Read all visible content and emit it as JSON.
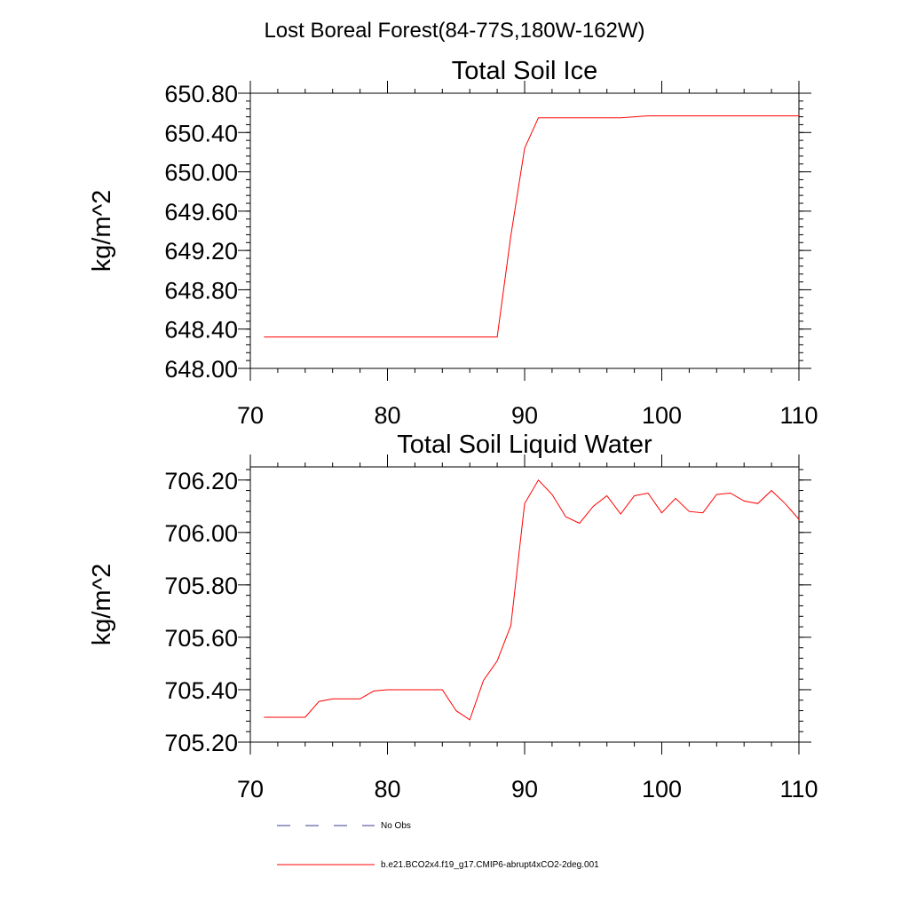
{
  "figure": {
    "title": "Lost Boreal Forest(84-77S,180W-162W)"
  },
  "legend": {
    "items": [
      {
        "label": "No Obs",
        "color": "#3b3b8f",
        "dash": "dashed"
      },
      {
        "label": "b.e21.BCO2x4.f19_g17.CMIP6-abrupt4xCO2-2deg.001",
        "color": "#ff0000",
        "dash": "solid"
      }
    ]
  },
  "chart_data": [
    {
      "type": "line",
      "title": "Total Soil Ice",
      "xlabel": "",
      "ylabel": "kg/m^2",
      "xlim": [
        70,
        110
      ],
      "ylim": [
        648.0,
        650.8
      ],
      "xticks": [
        70,
        80,
        90,
        100,
        110
      ],
      "xtick_labels": [
        "70",
        "80",
        "90",
        "100",
        "110"
      ],
      "yticks": [
        648.0,
        648.4,
        648.8,
        649.2,
        649.6,
        650.0,
        650.4,
        650.8
      ],
      "ytick_labels": [
        "648.00",
        "648.40",
        "648.80",
        "649.20",
        "649.60",
        "650.00",
        "650.40",
        "650.80"
      ],
      "series": [
        {
          "color": "#ff0000",
          "x": [
            71,
            72,
            73,
            74,
            75,
            76,
            77,
            78,
            79,
            80,
            81,
            82,
            83,
            84,
            85,
            86,
            87,
            88,
            89,
            90,
            91,
            92,
            93,
            94,
            95,
            96,
            97,
            98,
            99,
            100,
            101,
            102,
            103,
            104,
            105,
            106,
            107,
            108,
            109,
            110
          ],
          "y": [
            648.32,
            648.32,
            648.32,
            648.32,
            648.32,
            648.32,
            648.32,
            648.32,
            648.32,
            648.32,
            648.32,
            648.32,
            648.32,
            648.32,
            648.32,
            648.32,
            648.32,
            648.32,
            649.35,
            650.24,
            650.55,
            650.55,
            650.55,
            650.55,
            650.55,
            650.55,
            650.55,
            650.56,
            650.57,
            650.57,
            650.57,
            650.57,
            650.57,
            650.57,
            650.57,
            650.57,
            650.57,
            650.57,
            650.57,
            650.57
          ]
        }
      ]
    },
    {
      "type": "line",
      "title": "Total Soil Liquid Water",
      "xlabel": "",
      "ylabel": "kg/m^2",
      "xlim": [
        70,
        110
      ],
      "ylim": [
        705.2,
        706.25
      ],
      "xticks": [
        70,
        80,
        90,
        100,
        110
      ],
      "xtick_labels": [
        "70",
        "80",
        "90",
        "100",
        "110"
      ],
      "yticks": [
        705.2,
        705.4,
        705.6,
        705.8,
        706.0,
        706.2
      ],
      "ytick_labels": [
        "705.20",
        "705.40",
        "705.60",
        "705.80",
        "706.00",
        "706.20"
      ],
      "series": [
        {
          "color": "#ff0000",
          "x": [
            71,
            72,
            73,
            74,
            75,
            76,
            77,
            78,
            79,
            80,
            81,
            82,
            83,
            84,
            85,
            86,
            87,
            88,
            89,
            90,
            91,
            92,
            93,
            94,
            95,
            96,
            97,
            98,
            99,
            100,
            101,
            102,
            103,
            104,
            105,
            106,
            107,
            108,
            109,
            110
          ],
          "y": [
            705.295,
            705.295,
            705.295,
            705.295,
            705.355,
            705.365,
            705.365,
            705.365,
            705.395,
            705.4,
            705.4,
            705.4,
            705.4,
            705.4,
            705.32,
            705.285,
            705.435,
            705.51,
            705.645,
            706.11,
            706.2,
            706.145,
            706.06,
            706.035,
            706.1,
            706.14,
            706.07,
            706.14,
            706.15,
            706.075,
            706.13,
            706.08,
            706.075,
            706.145,
            706.15,
            706.12,
            706.11,
            706.16,
            706.11,
            706.05
          ]
        }
      ]
    }
  ]
}
